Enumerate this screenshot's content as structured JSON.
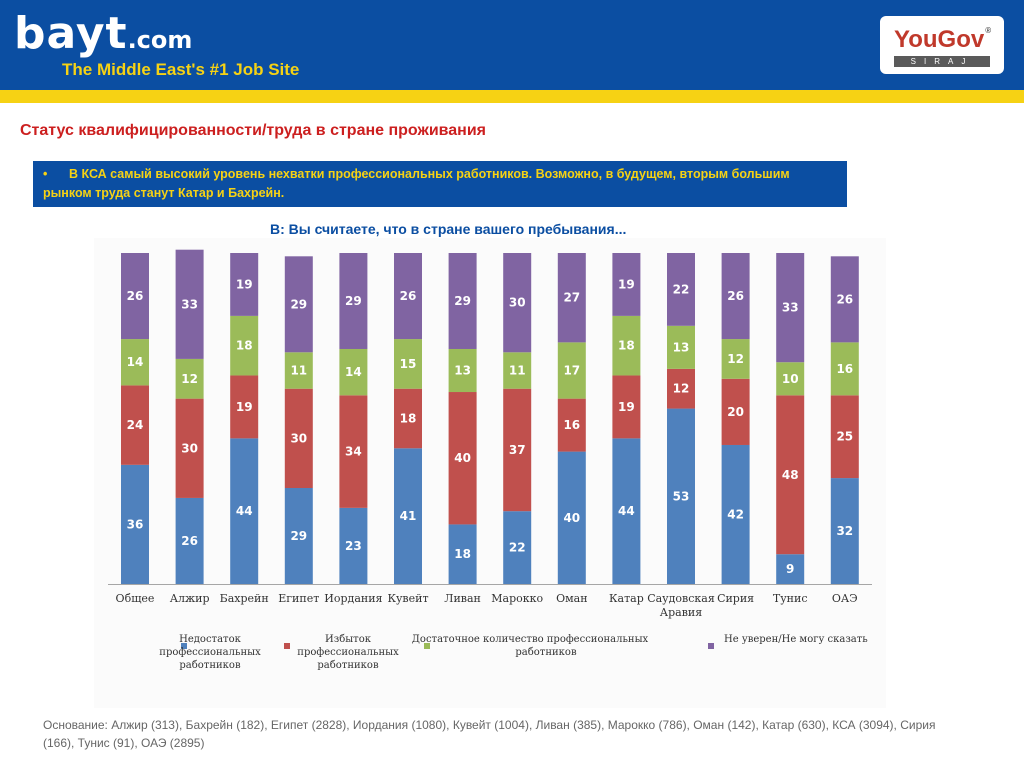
{
  "header": {
    "logo_text": "bayt",
    "logo_suffix": ".com",
    "logo_reg": "®",
    "tagline": "The Middle East's #1 Job Site",
    "partner_logo": "YouGov",
    "partner_reg": "®",
    "partner_sub": "SIRAJ",
    "colors": {
      "header_bg": "#0b4ea2",
      "band": "#f6d214"
    }
  },
  "title": "Статус квалифицированности/труда в стране проживания",
  "callout": {
    "bullet": "•",
    "text": "В КСА самый высокий уровень нехватки профессиональных работников. Возможно,  в будущем, вторым большим рынком труда станут Катар и Бахрейн."
  },
  "question": "В: Вы считаете, что в стране вашего пребывания...",
  "chart_data": {
    "type": "bar",
    "stacked": true,
    "normalized_percent": true,
    "categories": [
      "Общее",
      "Алжир",
      "Бахрейн",
      "Египет",
      "Иордания",
      "Кувейт",
      "Ливан",
      "Марокко",
      "Оман",
      "Катар",
      "Саудовская Аравия",
      "Сирия",
      "Тунис",
      "ОАЭ"
    ],
    "category_lines": [
      [
        "Общее"
      ],
      [
        "Алжир"
      ],
      [
        "Бахрейн"
      ],
      [
        "Египет"
      ],
      [
        "Иордания"
      ],
      [
        "Кувейт"
      ],
      [
        "Ливан"
      ],
      [
        "Марокко"
      ],
      [
        "Оман"
      ],
      [
        "Катар"
      ],
      [
        "Саудовская",
        "Аравия"
      ],
      [
        "Сирия"
      ],
      [
        "Тунис"
      ],
      [
        "ОАЭ"
      ]
    ],
    "series": [
      {
        "name": "Недостаток профессиональных работников",
        "legend_lines": [
          "Недостаток",
          "профессиональных",
          "работников"
        ],
        "color": "#4f81bd",
        "values": [
          36,
          26,
          44,
          29,
          23,
          41,
          18,
          22,
          40,
          44,
          53,
          42,
          9,
          32
        ]
      },
      {
        "name": "Избыток профессиональных работников",
        "legend_lines": [
          "Избыток",
          "профессиональных",
          "работников"
        ],
        "color": "#c0504d",
        "values": [
          24,
          30,
          19,
          30,
          34,
          18,
          40,
          37,
          16,
          19,
          12,
          20,
          48,
          25
        ]
      },
      {
        "name": "Достаточное количество профессиональных работников",
        "legend_lines": [
          "Достаточное количество профессиональных",
          "работников"
        ],
        "color": "#9bbb59",
        "values": [
          14,
          12,
          18,
          11,
          14,
          15,
          13,
          11,
          17,
          18,
          13,
          12,
          10,
          16
        ]
      },
      {
        "name": "Не уверен/Не могу сказать",
        "legend_lines": [
          "Не уверен/Не могу сказать"
        ],
        "color": "#8064a2",
        "values": [
          26,
          33,
          19,
          29,
          29,
          26,
          29,
          30,
          27,
          19,
          22,
          26,
          33,
          26
        ]
      }
    ],
    "title": "",
    "xlabel": "",
    "ylabel": "",
    "ylim": [
      0,
      100
    ],
    "grid": false,
    "legend_position": "bottom"
  },
  "footnote": "Основание:  Алжир (313), Бахрейн (182), Египет (2828), Иордания (1080), Кувейт (1004), Ливан (385), Марокко (786), Оман (142), Катар (630),  КСА (3094), Сирия (166), Тунис (91), ОАЭ (2895)"
}
